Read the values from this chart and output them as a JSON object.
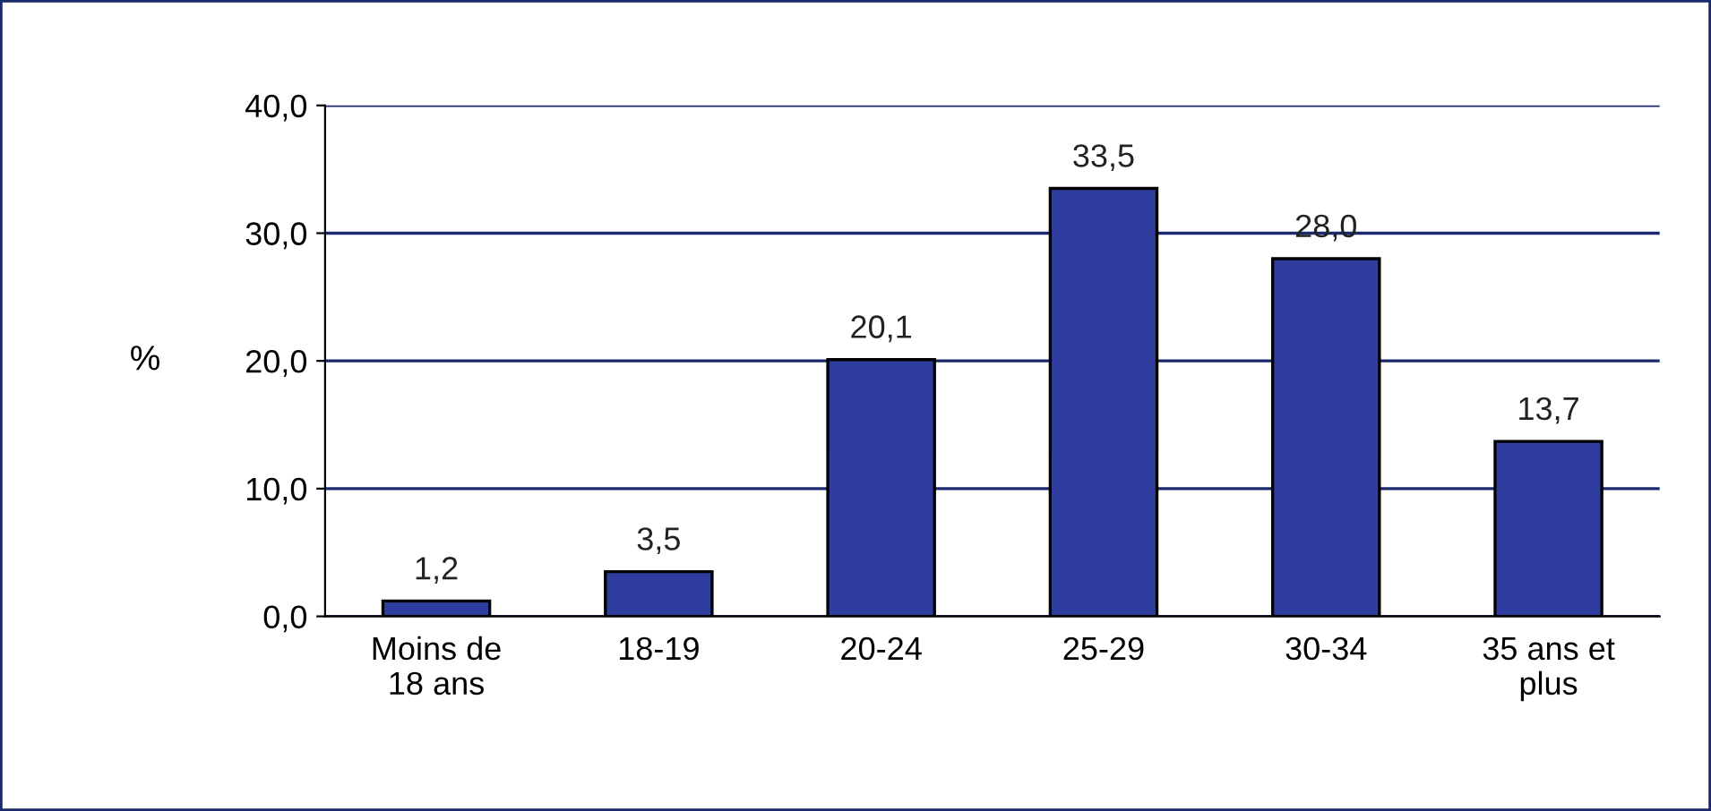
{
  "chart_data": {
    "type": "bar",
    "ylabel": "%",
    "categories": [
      "Moins de\n18 ans",
      "18-19",
      "20-24",
      "25-29",
      "30-34",
      "35 ans et\nplus"
    ],
    "values": [
      1.2,
      3.5,
      20.1,
      33.5,
      28.0,
      13.7
    ],
    "value_labels": [
      "1,2",
      "3,5",
      "20,1",
      "33,5",
      "28,0",
      "13,7"
    ],
    "color": "#2e3d9e",
    "ylim": [
      0,
      40
    ],
    "yticks": [
      {
        "value": 0,
        "label": "0,0"
      },
      {
        "value": 10,
        "label": "10,0"
      },
      {
        "value": 20,
        "label": "20,0"
      },
      {
        "value": 30,
        "label": "30,0"
      },
      {
        "value": 40,
        "label": "40,0"
      }
    ],
    "grid": "y"
  }
}
